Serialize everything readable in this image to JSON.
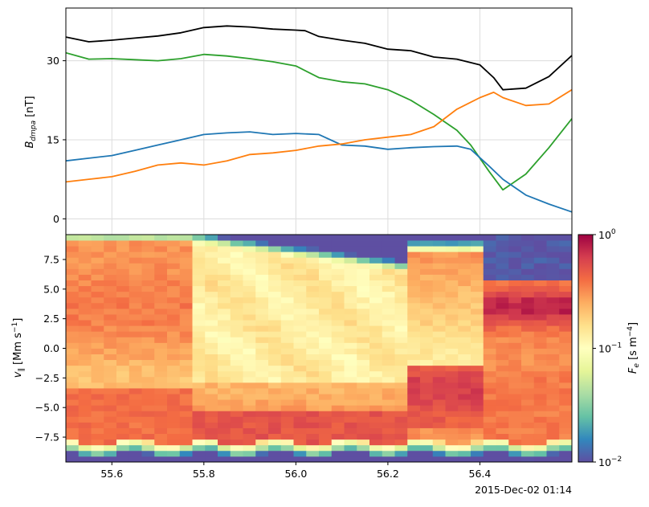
{
  "chart_data": [
    {
      "type": "line",
      "ylabel_main": "B",
      "ylabel_sub": "dmpa",
      "ylabel_unit": " [nT]",
      "xlim": [
        55.5,
        56.6
      ],
      "ylim": [
        -3,
        40
      ],
      "yticks": [
        0,
        15,
        30
      ],
      "grid": true,
      "series": [
        {
          "color": "#000000",
          "x": [
            55.5,
            55.55,
            55.6,
            55.65,
            55.7,
            55.75,
            55.8,
            55.85,
            55.9,
            55.95,
            56.0,
            56.02,
            56.05,
            56.1,
            56.15,
            56.2,
            56.25,
            56.3,
            56.35,
            56.4,
            56.43,
            56.45,
            56.5,
            56.55,
            56.6
          ],
          "y": [
            34.5,
            33.6,
            33.9,
            34.3,
            34.7,
            35.3,
            36.3,
            36.6,
            36.4,
            36.0,
            35.8,
            35.7,
            34.6,
            33.9,
            33.3,
            32.2,
            31.9,
            30.7,
            30.3,
            29.2,
            26.8,
            24.5,
            24.8,
            27.0,
            31.0
          ]
        },
        {
          "color": "#2ca02c",
          "x": [
            55.5,
            55.55,
            55.6,
            55.65,
            55.7,
            55.75,
            55.8,
            55.85,
            55.9,
            55.95,
            56.0,
            56.05,
            56.1,
            56.15,
            56.2,
            56.25,
            56.3,
            56.35,
            56.38,
            56.42,
            56.45,
            56.5,
            56.55,
            56.6
          ],
          "y": [
            31.5,
            30.3,
            30.4,
            30.2,
            30.0,
            30.4,
            31.2,
            30.9,
            30.4,
            29.8,
            29.0,
            26.8,
            26.0,
            25.6,
            24.5,
            22.5,
            19.8,
            16.8,
            14.0,
            9.0,
            5.5,
            8.5,
            13.5,
            19.0
          ]
        },
        {
          "color": "#1f77b4",
          "x": [
            55.5,
            55.55,
            55.6,
            55.65,
            55.7,
            55.75,
            55.8,
            55.85,
            55.9,
            55.95,
            56.0,
            56.05,
            56.1,
            56.15,
            56.2,
            56.25,
            56.3,
            56.35,
            56.38,
            56.42,
            56.45,
            56.5,
            56.55,
            56.6
          ],
          "y": [
            11.0,
            11.5,
            12.0,
            13.0,
            14.0,
            15.0,
            16.0,
            16.3,
            16.5,
            16.0,
            16.2,
            16.0,
            14.0,
            13.8,
            13.2,
            13.5,
            13.7,
            13.8,
            13.2,
            10.0,
            7.5,
            4.5,
            2.8,
            1.3
          ]
        },
        {
          "color": "#ff7f0e",
          "x": [
            55.5,
            55.55,
            55.6,
            55.65,
            55.7,
            55.75,
            55.8,
            55.85,
            55.9,
            55.95,
            56.0,
            56.05,
            56.1,
            56.15,
            56.2,
            56.25,
            56.3,
            56.35,
            56.4,
            56.43,
            56.45,
            56.5,
            56.55,
            56.6
          ],
          "y": [
            7.0,
            7.5,
            8.0,
            9.0,
            10.2,
            10.6,
            10.2,
            11.0,
            12.2,
            12.5,
            13.0,
            13.8,
            14.2,
            15.0,
            15.5,
            16.0,
            17.5,
            20.8,
            23.0,
            24.0,
            23.0,
            21.5,
            21.8,
            24.5
          ]
        }
      ]
    },
    {
      "type": "heatmap",
      "ylabel": "v∥ [Mm s⁻¹]",
      "ylabel_main": "v",
      "ylabel_sub": "∥",
      "ylabel_unit": " [Mm s",
      "ylabel_exp": "−1",
      "ylabel_close": "]",
      "xlim": [
        55.5,
        56.6
      ],
      "ylim": [
        -9.6,
        9.6
      ],
      "xticks": [
        "55.6",
        "55.8",
        "56.0",
        "56.2",
        "56.4"
      ],
      "xtick_values": [
        55.6,
        55.8,
        56.0,
        56.2,
        56.4
      ],
      "yticks": [
        "−7.5",
        "−5.0",
        "−2.5",
        "0.0",
        "2.5",
        "5.0",
        "7.5"
      ],
      "ytick_values": [
        -7.5,
        -5.0,
        -2.5,
        0.0,
        2.5,
        5.0,
        7.5
      ],
      "colormap": "Spectral_r",
      "log_color_scale": true,
      "clim": [
        0.01,
        1
      ],
      "colorbar_label_main": "F",
      "colorbar_label_sub": "e",
      "colorbar_label_unit": " [s m",
      "colorbar_label_exp": "−4",
      "colorbar_label_close": "]",
      "colorbar_ticks": [
        {
          "base": "10",
          "exp": "0",
          "value": 1
        },
        {
          "base": "10",
          "exp": "−1",
          "value": 0.1
        },
        {
          "base": "10",
          "exp": "−2",
          "value": 0.01
        }
      ],
      "ncols": 40,
      "nrows": 40,
      "time_label": "2015-Dec-02 01:14"
    }
  ]
}
